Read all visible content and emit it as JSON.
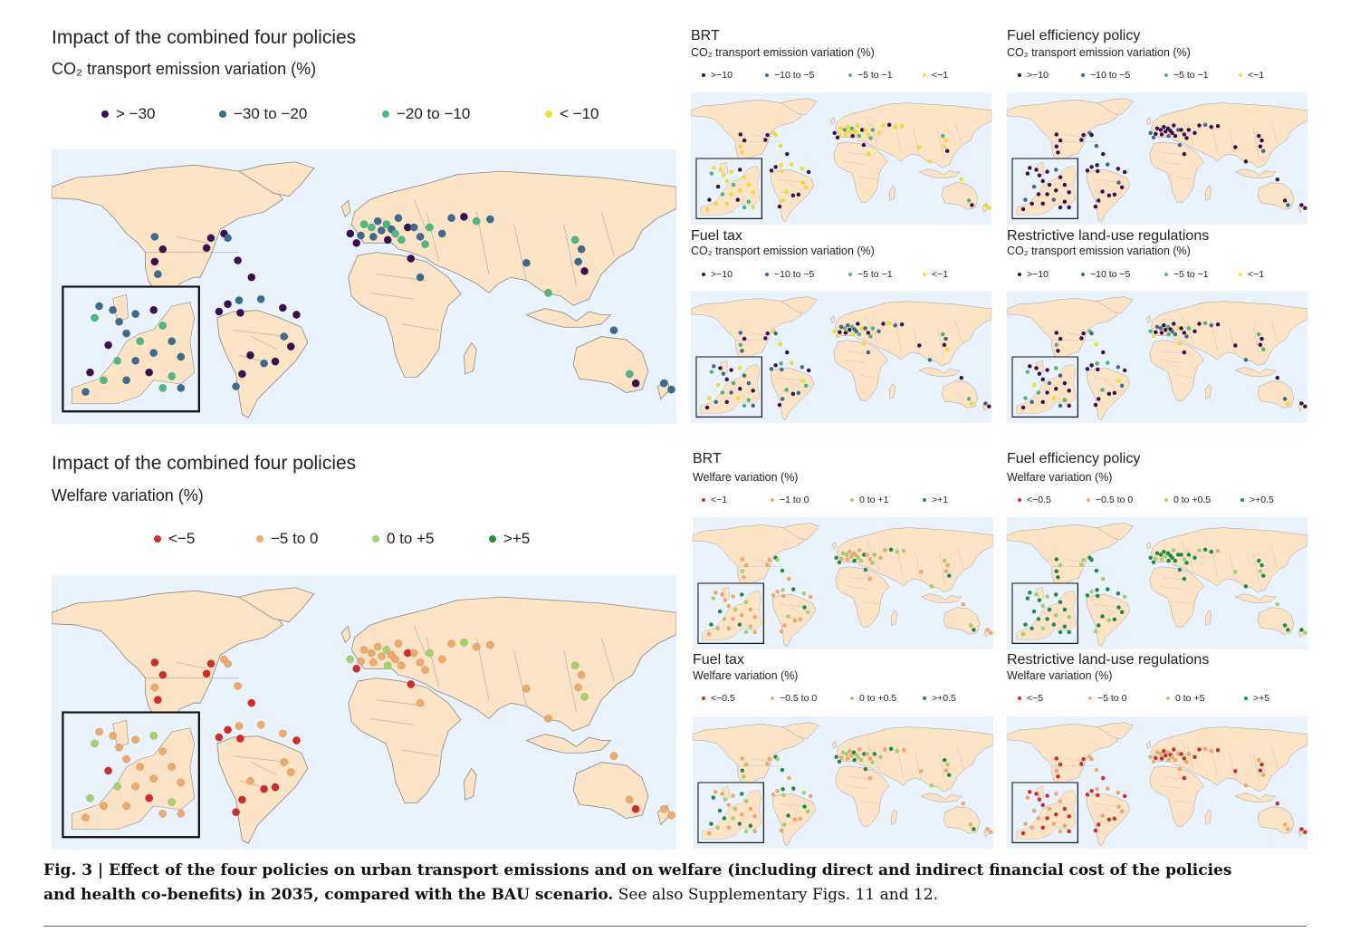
{
  "colors": {
    "ocean": "#eaf3fb",
    "land": "#fbe3c6",
    "border": "#8c8c8c",
    "em_gt30": "#3b0f4f",
    "em_30_20": "#3d6b8f",
    "em_20_10": "#4fb880",
    "em_lt10": "#f0e030",
    "wf_neg": "#d42a2a",
    "wf_negsmall": "#eeaa6a",
    "wf_possmall": "#a5d26c",
    "wf_pos": "#1e8c46"
  },
  "emissions": {
    "main_title": "Impact of the combined four policies",
    "main_subtitle": "CO₂ transport emission variation (%)",
    "legend": [
      "> −30",
      "−30 to −20",
      "−20 to −10",
      "< −10"
    ],
    "panels": [
      {
        "title": "BRT",
        "subtitle": "CO₂ transport emission variation (%)",
        "legend": [
          ">−10",
          "−10 to −5",
          "−5 to −1",
          "<−1"
        ]
      },
      {
        "title": "Fuel efficiency policy",
        "subtitle": "CO₂ transport emission variation (%)",
        "legend": [
          ">−10",
          "−10 to −5",
          "−5 to −1",
          "<−1"
        ]
      },
      {
        "title": "Fuel tax",
        "subtitle": "CO₂ transport emission variation (%)",
        "legend": [
          ">−10",
          "−10 to −5",
          "−5 to −1",
          "<−1"
        ]
      },
      {
        "title": "Restrictive land-use regulations",
        "subtitle": "CO₂ transport emission variation (%)",
        "legend": [
          ">−10",
          "−10 to −5",
          "−5 to −1",
          "<−1"
        ]
      }
    ]
  },
  "welfare": {
    "main_title": "Impact of the combined four policies",
    "main_subtitle": "Welfare variation (%)",
    "legend": [
      "<−5",
      "−5 to 0",
      "0 to +5",
      ">+5"
    ],
    "panels": [
      {
        "title": "BRT",
        "subtitle": "Welfare variation (%)",
        "legend": [
          "<−1",
          "−1 to 0",
          "0 to +1",
          ">+1"
        ]
      },
      {
        "title": "Fuel efficiency policy",
        "subtitle": "Welfare variation (%)",
        "legend": [
          "<−0.5",
          "−0.5 to 0",
          "0 to +0.5",
          ">+0.5"
        ]
      },
      {
        "title": "Fuel tax",
        "subtitle": "Welfare variation (%)",
        "legend": [
          "<−0.5",
          "−0.5 to 0",
          "0 to +0.5",
          ">+0.5"
        ]
      },
      {
        "title": "Restrictive land-use regulations",
        "subtitle": "Welfare variation (%)",
        "legend": [
          "<−5",
          "−5 to 0",
          "0 to +5",
          ">+5"
        ]
      }
    ]
  },
  "caption": {
    "label": "Fig. 3 |",
    "bold": " Effect of the four policies on urban transport emissions and on welfare (including direct and indirect financial cost of the policies and health co-benefits) in 2035, compared with the BAU scenario.",
    "normal": " See also Supplementary Figs. 11 and 12."
  }
}
